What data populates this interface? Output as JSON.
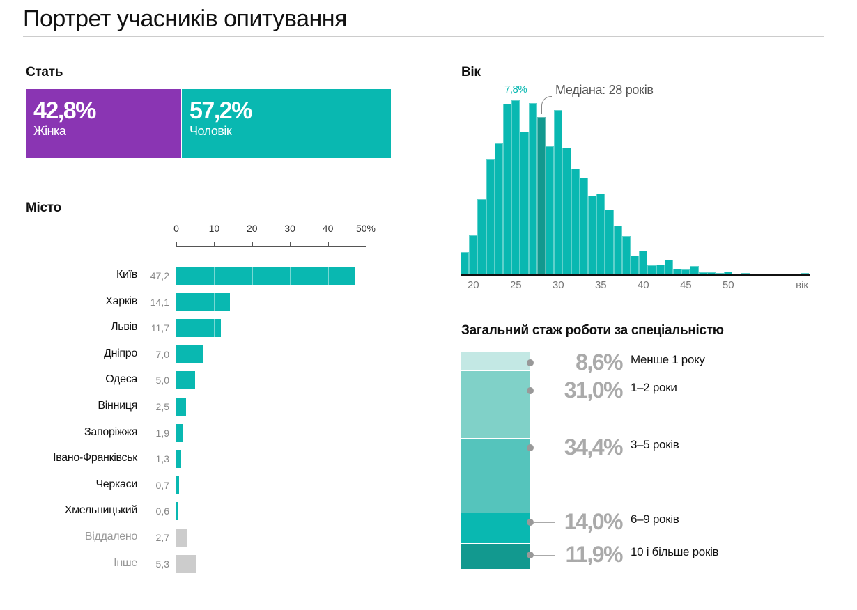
{
  "title": "Портрет учасників опитування",
  "colors": {
    "female": "#8a35b3",
    "male": "#09b8b1",
    "teal": "#09b8b1",
    "median": "#12998f",
    "other": "#cccccc"
  },
  "gender": {
    "heading": "Стать",
    "female": {
      "pct": "42,8%",
      "label": "Жінка",
      "value": 42.8
    },
    "male": {
      "pct": "57,2%",
      "label": "Чоловік",
      "value": 57.2
    }
  },
  "chart_data": [
    {
      "type": "bar",
      "title": "Місто",
      "xlim": [
        0,
        50
      ],
      "ticks": [
        "0",
        "10",
        "20",
        "30",
        "40",
        "50%"
      ],
      "categories": [
        "Київ",
        "Харків",
        "Львів",
        "Дніпро",
        "Одеса",
        "Вінниця",
        "Запоріжжя",
        "Івано-Франківськ",
        "Черкаси",
        "Хмельницький",
        "Віддалено",
        "Інше"
      ],
      "labels": [
        "47,2",
        "14,1",
        "11,7",
        "7,0",
        "5,0",
        "2,5",
        "1,9",
        "1,3",
        "0,7",
        "0,6",
        "2,7",
        "5,3"
      ],
      "values": [
        47.2,
        14.1,
        11.7,
        7.0,
        5.0,
        2.5,
        1.9,
        1.3,
        0.7,
        0.6,
        2.7,
        5.3
      ],
      "muted": [
        false,
        false,
        false,
        false,
        false,
        false,
        false,
        false,
        false,
        false,
        true,
        true
      ]
    },
    {
      "type": "bar",
      "title": "Вік",
      "xlabel": "вік",
      "ticks": [
        "20",
        "25",
        "30",
        "35",
        "40",
        "45",
        "50"
      ],
      "peak_label": "7,8%",
      "median_label": "Медіана: 28 років",
      "median": 28,
      "x": [
        19,
        20,
        21,
        22,
        23,
        24,
        25,
        26,
        27,
        28,
        29,
        30,
        31,
        32,
        33,
        34,
        35,
        36,
        37,
        38,
        39,
        40,
        41,
        42,
        43,
        44,
        45,
        46,
        47,
        48,
        49,
        50,
        51,
        52,
        53,
        54,
        55,
        56,
        57,
        58,
        59
      ],
      "values": [
        0.99,
        1.75,
        3.38,
        5.16,
        5.86,
        7.65,
        7.8,
        6.4,
        7.67,
        7.05,
        5.73,
        7.36,
        5.67,
        4.75,
        4.33,
        3.53,
        3.62,
        2.91,
        2.18,
        1.72,
        0.84,
        1.05,
        0.42,
        0.45,
        0.64,
        0.25,
        0.23,
        0.36,
        0.1,
        0.1,
        0.05,
        0.14,
        0.01,
        0.05,
        0.03,
        0.01,
        0.01,
        0.01,
        0.01,
        0.04,
        0.06
      ]
    },
    {
      "type": "bar",
      "title": "Загальний стаж роботи за спеціальністю",
      "categories": [
        "Менше 1 року",
        "1–2 роки",
        "3–5 років",
        "6–9 років",
        "10 і більше років"
      ],
      "labels": [
        "8,6%",
        "31,0%",
        "34,4%",
        "14,0%",
        "11,9%"
      ],
      "values": [
        8.6,
        31.0,
        34.4,
        14.0,
        11.9
      ],
      "colors": [
        "#c3e8e4",
        "#80d1c8",
        "#55c4bc",
        "#09b8b1",
        "#12998f"
      ]
    }
  ]
}
